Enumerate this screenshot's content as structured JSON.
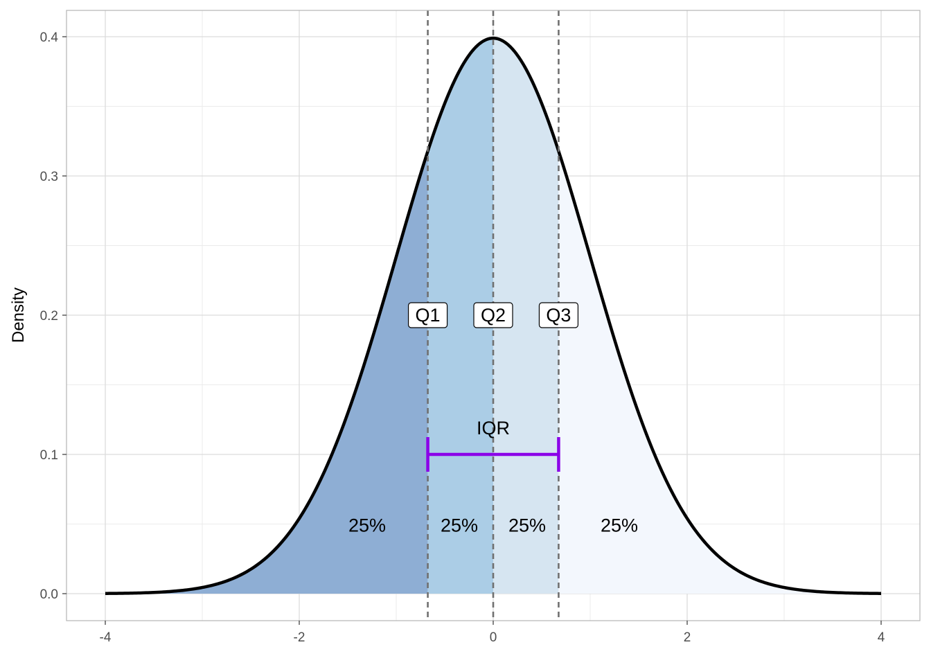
{
  "chart_data": {
    "type": "area",
    "title": "",
    "xlabel": "",
    "ylabel": "Density",
    "xlim": [
      -4,
      4
    ],
    "ylim": [
      0,
      0.4
    ],
    "x_ticks": [
      -4,
      -2,
      0,
      2,
      4
    ],
    "x_tick_labels": [
      "-4",
      "-2",
      "0",
      "2",
      "4"
    ],
    "y_ticks": [
      0.0,
      0.1,
      0.2,
      0.3,
      0.4
    ],
    "y_tick_labels": [
      "0.0",
      "0.1",
      "0.2",
      "0.3",
      "0.4"
    ],
    "grid": true,
    "curve": {
      "distribution": "standard normal",
      "mean": 0,
      "sd": 1,
      "x": [
        -4,
        -3.5,
        -3,
        -2.5,
        -2,
        -1.5,
        -1,
        -0.6745,
        -0.5,
        0,
        0.5,
        0.6745,
        1,
        1.5,
        2,
        2.5,
        3,
        3.5,
        4
      ],
      "y": [
        0.0001,
        0.0009,
        0.0044,
        0.0175,
        0.054,
        0.1295,
        0.242,
        0.3178,
        0.3521,
        0.3989,
        0.3521,
        0.3178,
        0.242,
        0.1295,
        0.054,
        0.0175,
        0.0044,
        0.0009,
        0.0001
      ],
      "color": "#000000"
    },
    "regions": [
      {
        "from": -4,
        "to": -0.6745,
        "fill": "#8eaed4",
        "label": "25%",
        "label_x": -1.3,
        "label_y": 0.049
      },
      {
        "from": -0.6745,
        "to": 0,
        "fill": "#abcde6",
        "label": "25%",
        "label_x": -0.35,
        "label_y": 0.049
      },
      {
        "from": 0,
        "to": 0.6745,
        "fill": "#d6e5f1",
        "label": "25%",
        "label_x": 0.35,
        "label_y": 0.049
      },
      {
        "from": 0.6745,
        "to": 4,
        "fill": "#f3f7fd",
        "label": "25%",
        "label_x": 1.3,
        "label_y": 0.049
      }
    ],
    "quartiles": [
      {
        "name": "Q1",
        "x": -0.6745,
        "label_y": 0.2
      },
      {
        "name": "Q2",
        "x": 0,
        "label_y": 0.2
      },
      {
        "name": "Q3",
        "x": 0.6745,
        "label_y": 0.2
      }
    ],
    "iqr": {
      "label": "IQR",
      "from": -0.6745,
      "to": 0.6745,
      "y": 0.1,
      "label_y": 0.119,
      "color": "#8b00e8"
    }
  }
}
